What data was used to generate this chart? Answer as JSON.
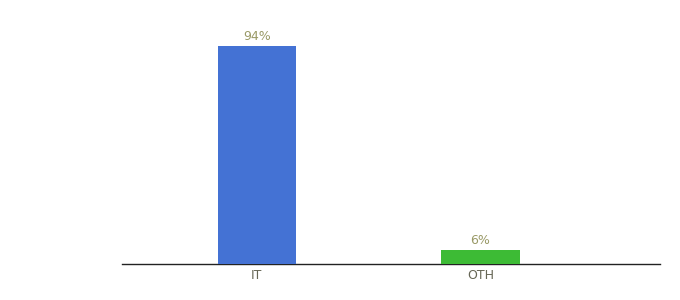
{
  "categories": [
    "IT",
    "OTH"
  ],
  "values": [
    94,
    6
  ],
  "bar_colors": [
    "#4472d4",
    "#3dbb35"
  ],
  "value_labels": [
    "94%",
    "6%"
  ],
  "ylim": [
    0,
    105
  ],
  "background_color": "#ffffff",
  "label_color": "#999966",
  "label_fontsize": 9,
  "tick_fontsize": 9,
  "tick_color": "#666655",
  "figsize": [
    6.8,
    3.0
  ],
  "dpi": 100,
  "x_positions": [
    1,
    2
  ],
  "bar_width": 0.35,
  "xlim": [
    0.4,
    2.8
  ]
}
